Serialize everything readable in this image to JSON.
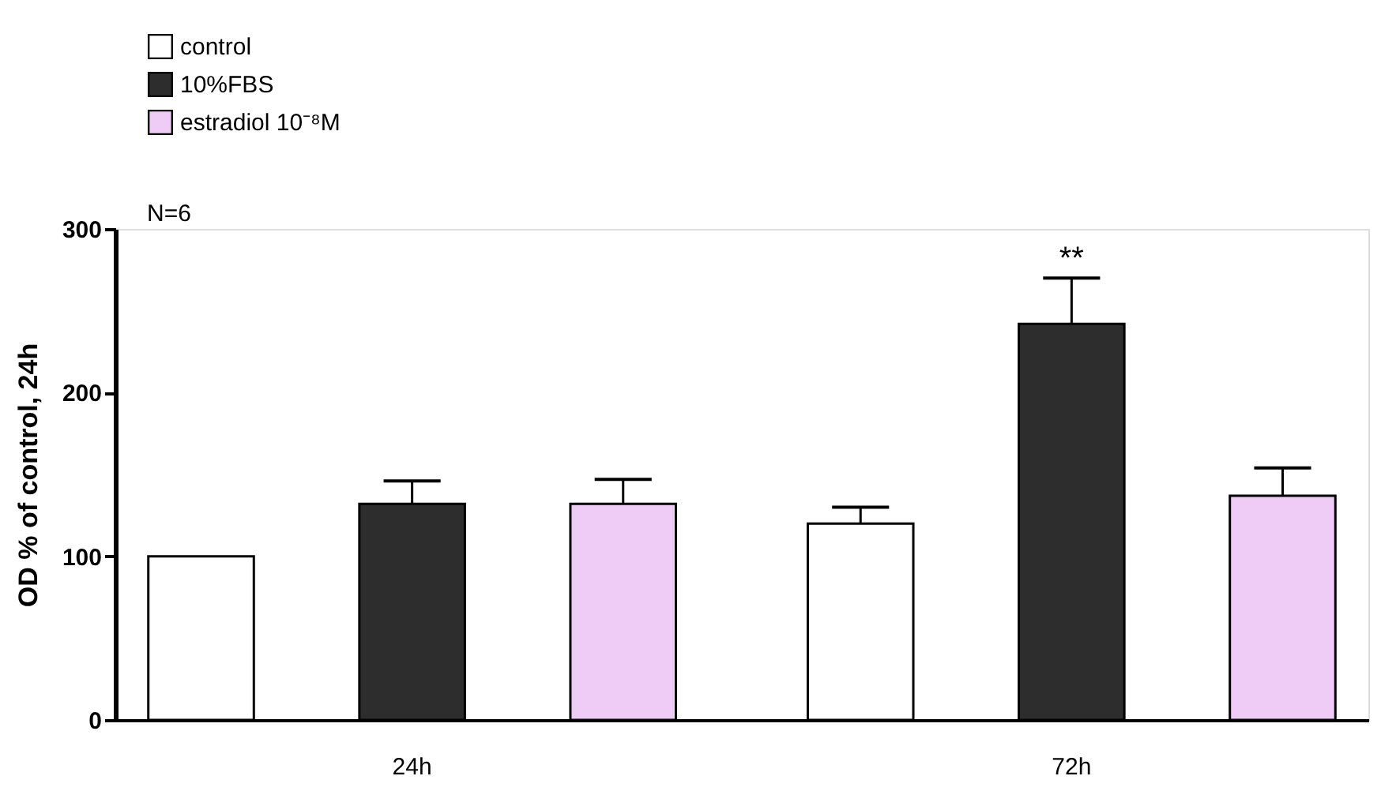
{
  "chart_data": {
    "type": "bar",
    "ylabel": "OD % of control, 24h",
    "categories": [
      "24h",
      "72h"
    ],
    "series": [
      {
        "name": "control",
        "color": "#ffffff",
        "values": [
          100,
          120
        ],
        "errors": [
          null,
          [
            120,
            130
          ]
        ]
      },
      {
        "name": "10%FBS",
        "color": "#2d2d2d",
        "values": [
          132,
          242
        ],
        "errors": [
          [
            132,
            146
          ],
          [
            242,
            270
          ]
        ]
      },
      {
        "name": "estradiol 10⁻⁸M",
        "color": "#eeccf6",
        "values": [
          132,
          137
        ],
        "errors": [
          [
            132,
            147
          ],
          [
            137,
            154
          ]
        ]
      }
    ],
    "ylim": [
      0,
      300
    ],
    "yticks": [
      0,
      100,
      200,
      300
    ],
    "legend": "top left",
    "annotations": [
      "N=6",
      {
        "text": "**",
        "x": "72h",
        "y": 270
      }
    ]
  }
}
